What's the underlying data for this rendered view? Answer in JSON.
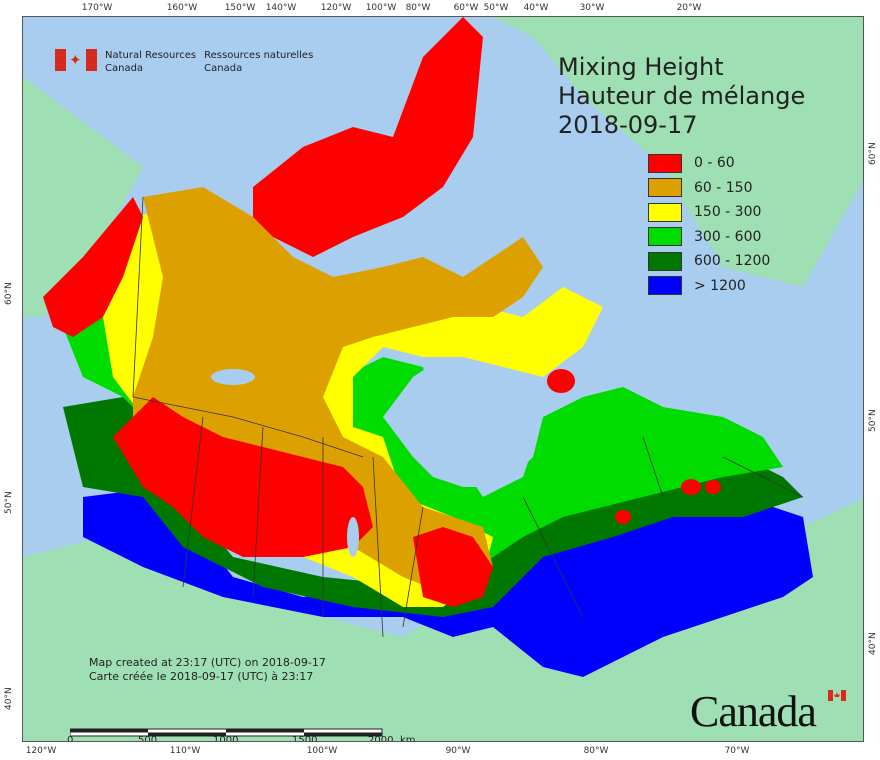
{
  "title": {
    "line1": "Mixing Height",
    "line2": "Hauteur de mélange",
    "date": "2018-09-17"
  },
  "legend": [
    {
      "label": "0 - 60",
      "color": "#ff0000"
    },
    {
      "label": "60 - 150",
      "color": "#dca000"
    },
    {
      "label": "150 - 300",
      "color": "#ffff00"
    },
    {
      "label": "300 - 600",
      "color": "#00dc00"
    },
    {
      "label": "600 - 1200",
      "color": "#007800"
    },
    {
      "label": "> 1200",
      "color": "#0000ff"
    }
  ],
  "agency": {
    "en": "Natural Resources\nCanada",
    "fr": "Ressources naturelles\nCanada",
    "flag_icon": "canada-flag-icon"
  },
  "creation_note": {
    "en": "Map created at 23:17 (UTC) on 2018-09-17",
    "fr": "Carte créée le 2018-09-17 (UTC) à 23:17"
  },
  "scale_bar": {
    "labels": [
      "0",
      "500",
      "1000",
      "1500",
      "2000"
    ],
    "unit": "km"
  },
  "wordmark": "Canada",
  "graticule": {
    "top": [
      "170°W",
      "160°W",
      "150°W",
      "140°W",
      "120°W",
      "100°W",
      "80°W",
      "60°W",
      "50°W",
      "40°W",
      "30°W",
      "20°W"
    ],
    "bottom": [
      "120°W",
      "110°W",
      "100°W",
      "90°W",
      "80°W",
      "70°W"
    ],
    "left": [
      "60°N",
      "50°N",
      "40°N"
    ],
    "right": [
      "60°N",
      "50°N",
      "40°N"
    ]
  },
  "colors": {
    "ocean": "#a8cdee",
    "land_outside": "#9ee0b4",
    "boundaries": "#333333"
  }
}
